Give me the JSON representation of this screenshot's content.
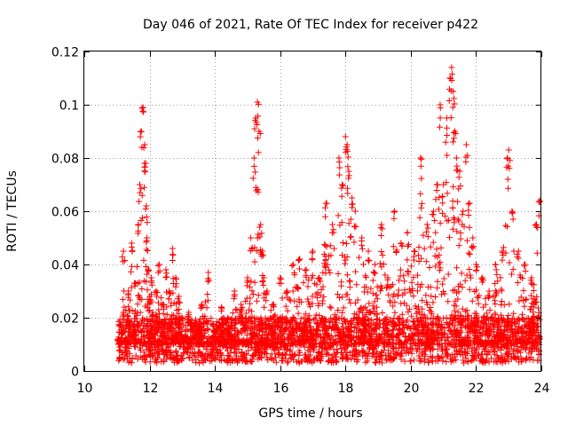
{
  "chart_data": {
    "type": "scatter",
    "title": "Day 046 of 2021, Rate Of TEC Index for receiver p422",
    "xlabel": "GPS time / hours",
    "ylabel": "ROTI / TECUs",
    "xlim": [
      10,
      24
    ],
    "ylim": [
      0,
      0.12
    ],
    "xticks": [
      10,
      12,
      14,
      16,
      18,
      20,
      22,
      24
    ],
    "xtick_labels": [
      "10",
      "12",
      "14",
      "16",
      "18",
      "20",
      "22",
      "24"
    ],
    "yticks": [
      0,
      0.02,
      0.04,
      0.06,
      0.08,
      0.1,
      0.12
    ],
    "ytick_labels": [
      "0",
      "0.02",
      "0.04",
      "0.06",
      "0.08",
      "0.1",
      "0.12"
    ],
    "grid": true,
    "marker": "+",
    "color": "#ff0000",
    "series": [
      {
        "name": "ROTI",
        "x": [
          11.05,
          11.2,
          11.35,
          11.45,
          11.55,
          11.65,
          11.7,
          11.75,
          11.8,
          11.85,
          11.88,
          11.9,
          11.92,
          11.95,
          12.0,
          12.05,
          12.1,
          12.2,
          12.3,
          12.4,
          12.5,
          12.6,
          12.7,
          12.8,
          12.9,
          13.0,
          13.2,
          13.4,
          13.6,
          13.8,
          14.0,
          14.2,
          14.4,
          14.6,
          14.8,
          15.0,
          15.1,
          15.2,
          15.25,
          15.3,
          15.35,
          15.4,
          15.45,
          15.5,
          15.6,
          15.8,
          16.0,
          16.2,
          16.4,
          16.6,
          16.8,
          17.0,
          17.2,
          17.4,
          17.6,
          17.8,
          17.9,
          18.0,
          18.05,
          18.1,
          18.2,
          18.3,
          18.5,
          18.7,
          18.9,
          19.1,
          19.3,
          19.5,
          19.7,
          19.9,
          20.1,
          20.3,
          20.5,
          20.7,
          20.8,
          20.9,
          21.0,
          21.1,
          21.2,
          21.25,
          21.3,
          21.35,
          21.4,
          21.5,
          21.6,
          21.7,
          21.8,
          21.9,
          22.0,
          22.2,
          22.4,
          22.6,
          22.8,
          22.95,
          23.0,
          23.1,
          23.3,
          23.5,
          23.7,
          23.85,
          23.95
        ],
        "y": [
          0.012,
          0.045,
          0.03,
          0.048,
          0.033,
          0.055,
          0.07,
          0.09,
          0.099,
          0.085,
          0.078,
          0.062,
          0.05,
          0.038,
          0.028,
          0.035,
          0.022,
          0.03,
          0.04,
          0.025,
          0.038,
          0.03,
          0.046,
          0.035,
          0.028,
          0.02,
          0.022,
          0.018,
          0.025,
          0.037,
          0.015,
          0.024,
          0.02,
          0.03,
          0.025,
          0.035,
          0.05,
          0.08,
          0.095,
          0.101,
          0.09,
          0.055,
          0.045,
          0.035,
          0.03,
          0.025,
          0.035,
          0.03,
          0.04,
          0.042,
          0.038,
          0.045,
          0.035,
          0.063,
          0.055,
          0.08,
          0.07,
          0.088,
          0.085,
          0.075,
          0.065,
          0.06,
          0.05,
          0.045,
          0.04,
          0.055,
          0.035,
          0.06,
          0.048,
          0.052,
          0.045,
          0.08,
          0.055,
          0.06,
          0.07,
          0.1,
          0.07,
          0.095,
          0.11,
          0.114,
          0.105,
          0.09,
          0.08,
          0.075,
          0.06,
          0.085,
          0.063,
          0.05,
          0.04,
          0.035,
          0.03,
          0.04,
          0.045,
          0.08,
          0.083,
          0.06,
          0.045,
          0.04,
          0.035,
          0.055,
          0.064
        ],
        "baseline_range": [
          0.003,
          0.02
        ]
      }
    ]
  }
}
